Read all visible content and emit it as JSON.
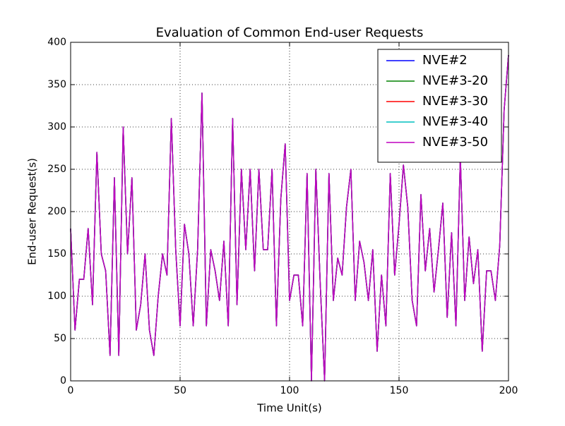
{
  "chart_data": {
    "type": "line",
    "title": "Evaluation of Common End-user Requests",
    "xlabel": "Time Unit(s)",
    "ylabel": "End-user Request(s)",
    "x": [
      0,
      2,
      4,
      6,
      8,
      10,
      12,
      14,
      16,
      18,
      20,
      22,
      24,
      26,
      28,
      30,
      32,
      34,
      36,
      38,
      40,
      42,
      44,
      46,
      48,
      50,
      52,
      54,
      56,
      58,
      60,
      62,
      64,
      66,
      68,
      70,
      72,
      74,
      76,
      78,
      80,
      82,
      84,
      86,
      88,
      90,
      92,
      94,
      96,
      98,
      100,
      102,
      104,
      106,
      108,
      110,
      112,
      114,
      116,
      118,
      120,
      122,
      124,
      126,
      128,
      130,
      132,
      134,
      136,
      138,
      140,
      142,
      144,
      146,
      148,
      150,
      152,
      154,
      156,
      158,
      160,
      162,
      164,
      166,
      168,
      170,
      172,
      174,
      176,
      178,
      180,
      182,
      184,
      186,
      188,
      190,
      192,
      194,
      196,
      198,
      200
    ],
    "series": [
      {
        "name": "NVE#2",
        "color": "#0000ff",
        "values": [
          180,
          60,
          120,
          120,
          180,
          90,
          270,
          150,
          130,
          30,
          240,
          30,
          300,
          150,
          240,
          60,
          90,
          150,
          60,
          30,
          100,
          150,
          125,
          310,
          155,
          65,
          185,
          150,
          65,
          155,
          340,
          65,
          155,
          130,
          95,
          165,
          65,
          310,
          90,
          250,
          155,
          250,
          130,
          250,
          155,
          155,
          250,
          65,
          215,
          280,
          95,
          125,
          125,
          65,
          245,
          0,
          250,
          115,
          0,
          245,
          95,
          145,
          125,
          205,
          250,
          95,
          165,
          140,
          95,
          155,
          35,
          125,
          65,
          245,
          125,
          185,
          255,
          205,
          95,
          65,
          220,
          130,
          180,
          105,
          155,
          210,
          75,
          175,
          65,
          265,
          95,
          170,
          115,
          155,
          35,
          130,
          130,
          95,
          160,
          320,
          385
        ]
      },
      {
        "name": "NVE#3-20",
        "color": "#008000",
        "values": [
          180,
          60,
          120,
          120,
          180,
          90,
          270,
          150,
          130,
          30,
          240,
          30,
          300,
          150,
          240,
          60,
          90,
          150,
          60,
          30,
          100,
          150,
          125,
          310,
          155,
          65,
          185,
          150,
          65,
          155,
          340,
          65,
          155,
          130,
          95,
          165,
          65,
          310,
          90,
          250,
          155,
          250,
          130,
          250,
          155,
          155,
          250,
          65,
          215,
          280,
          95,
          125,
          125,
          65,
          245,
          0,
          250,
          115,
          0,
          245,
          95,
          145,
          125,
          205,
          250,
          95,
          165,
          140,
          95,
          155,
          35,
          125,
          65,
          245,
          125,
          185,
          255,
          205,
          95,
          65,
          220,
          130,
          180,
          105,
          155,
          210,
          75,
          175,
          65,
          265,
          95,
          170,
          115,
          155,
          35,
          130,
          130,
          95,
          160,
          320,
          385
        ]
      },
      {
        "name": "NVE#3-30",
        "color": "#ff0000",
        "values": [
          180,
          60,
          120,
          120,
          180,
          90,
          270,
          150,
          130,
          30,
          240,
          30,
          300,
          150,
          240,
          60,
          90,
          150,
          60,
          30,
          100,
          150,
          125,
          310,
          155,
          65,
          185,
          150,
          65,
          155,
          340,
          65,
          155,
          130,
          95,
          165,
          65,
          310,
          90,
          250,
          155,
          250,
          130,
          250,
          155,
          155,
          250,
          65,
          215,
          280,
          95,
          125,
          125,
          65,
          245,
          0,
          250,
          115,
          0,
          245,
          95,
          145,
          125,
          205,
          250,
          95,
          165,
          140,
          95,
          155,
          35,
          125,
          65,
          245,
          125,
          185,
          255,
          205,
          95,
          65,
          220,
          130,
          180,
          105,
          155,
          210,
          75,
          175,
          65,
          265,
          95,
          170,
          115,
          155,
          35,
          130,
          130,
          95,
          160,
          320,
          385
        ]
      },
      {
        "name": "NVE#3-40",
        "color": "#00bfbf",
        "values": [
          180,
          60,
          120,
          120,
          180,
          90,
          270,
          150,
          130,
          30,
          240,
          30,
          300,
          150,
          240,
          60,
          90,
          150,
          60,
          30,
          100,
          150,
          125,
          310,
          155,
          65,
          185,
          150,
          65,
          155,
          340,
          65,
          155,
          130,
          95,
          165,
          65,
          310,
          90,
          250,
          155,
          250,
          130,
          250,
          155,
          155,
          250,
          65,
          215,
          280,
          95,
          125,
          125,
          65,
          245,
          0,
          250,
          115,
          0,
          245,
          95,
          145,
          125,
          205,
          250,
          95,
          165,
          140,
          95,
          155,
          35,
          125,
          65,
          245,
          125,
          185,
          255,
          205,
          95,
          65,
          220,
          130,
          180,
          105,
          155,
          210,
          75,
          175,
          65,
          265,
          95,
          170,
          115,
          155,
          35,
          130,
          130,
          95,
          160,
          320,
          385
        ]
      },
      {
        "name": "NVE#3-50",
        "color": "#bf00bf",
        "values": [
          180,
          60,
          120,
          120,
          180,
          90,
          270,
          150,
          130,
          30,
          240,
          30,
          300,
          150,
          240,
          60,
          90,
          150,
          60,
          30,
          100,
          150,
          125,
          310,
          155,
          65,
          185,
          150,
          65,
          155,
          340,
          65,
          155,
          130,
          95,
          165,
          65,
          310,
          90,
          250,
          155,
          250,
          130,
          250,
          155,
          155,
          250,
          65,
          215,
          280,
          95,
          125,
          125,
          65,
          245,
          0,
          250,
          115,
          0,
          245,
          95,
          145,
          125,
          205,
          250,
          95,
          165,
          140,
          95,
          155,
          35,
          125,
          65,
          245,
          125,
          185,
          255,
          205,
          95,
          65,
          220,
          130,
          180,
          105,
          155,
          210,
          75,
          175,
          65,
          265,
          95,
          170,
          115,
          155,
          35,
          130,
          130,
          95,
          160,
          320,
          385
        ]
      }
    ],
    "xlim": [
      0,
      200
    ],
    "xticks": [
      0,
      50,
      100,
      150,
      200
    ],
    "ylim": [
      0,
      400
    ],
    "yticks": [
      0,
      50,
      100,
      150,
      200,
      250,
      300,
      350,
      400
    ],
    "grid": true,
    "legend": "upper right"
  }
}
